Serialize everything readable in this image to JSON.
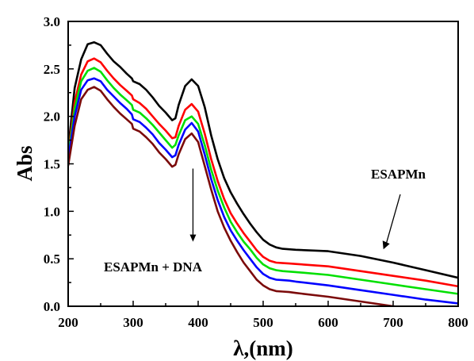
{
  "chart_data": {
    "type": "line",
    "xlabel": "λ,(nm)",
    "ylabel": "Abs",
    "xlim": [
      200,
      800
    ],
    "ylim": [
      0.0,
      3.0
    ],
    "x_ticks": [
      "200",
      "300",
      "400",
      "500",
      "600",
      "700",
      "800"
    ],
    "y_ticks": [
      "0.0",
      "0.5",
      "1.0",
      "1.5",
      "2.0",
      "2.5",
      "3.0"
    ],
    "grid": false,
    "annotations": [
      {
        "text": "ESAPMn",
        "target_x": 685,
        "target_y": 0.6
      },
      {
        "text": "ESAPMn + DNA",
        "arrow_from_x": 392,
        "arrow_from_y": 1.45,
        "arrow_to_x": 392,
        "arrow_to_y": 0.68
      }
    ],
    "x": [
      200,
      210,
      220,
      230,
      240,
      250,
      260,
      270,
      280,
      290,
      298,
      300,
      310,
      320,
      330,
      340,
      350,
      360,
      365,
      370,
      380,
      390,
      400,
      410,
      420,
      430,
      440,
      450,
      460,
      470,
      480,
      490,
      500,
      510,
      520,
      530,
      540,
      550,
      600,
      650,
      700,
      750,
      800
    ],
    "series": [
      {
        "color": "#000000",
        "values": [
          1.65,
          2.3,
          2.6,
          2.76,
          2.78,
          2.75,
          2.66,
          2.58,
          2.52,
          2.45,
          2.4,
          2.37,
          2.34,
          2.28,
          2.2,
          2.11,
          2.04,
          1.96,
          1.98,
          2.12,
          2.32,
          2.39,
          2.32,
          2.1,
          1.8,
          1.55,
          1.35,
          1.2,
          1.08,
          0.97,
          0.87,
          0.78,
          0.7,
          0.65,
          0.62,
          0.605,
          0.6,
          0.595,
          0.58,
          0.53,
          0.46,
          0.38,
          0.3
        ]
      },
      {
        "color": "#ff0000",
        "values": [
          1.6,
          2.15,
          2.44,
          2.58,
          2.61,
          2.57,
          2.48,
          2.4,
          2.33,
          2.27,
          2.22,
          2.18,
          2.14,
          2.08,
          2.0,
          1.92,
          1.85,
          1.77,
          1.78,
          1.9,
          2.07,
          2.13,
          2.05,
          1.82,
          1.55,
          1.32,
          1.13,
          0.98,
          0.87,
          0.77,
          0.68,
          0.59,
          0.52,
          0.48,
          0.46,
          0.455,
          0.45,
          0.445,
          0.42,
          0.37,
          0.32,
          0.27,
          0.21
        ]
      },
      {
        "color": "#00e000",
        "values": [
          1.58,
          2.08,
          2.37,
          2.48,
          2.51,
          2.47,
          2.38,
          2.3,
          2.23,
          2.17,
          2.12,
          2.07,
          2.04,
          1.98,
          1.91,
          1.83,
          1.75,
          1.67,
          1.7,
          1.8,
          1.96,
          2.0,
          1.92,
          1.7,
          1.44,
          1.22,
          1.04,
          0.89,
          0.78,
          0.68,
          0.6,
          0.51,
          0.44,
          0.4,
          0.38,
          0.37,
          0.365,
          0.36,
          0.33,
          0.28,
          0.23,
          0.18,
          0.13
        ]
      },
      {
        "color": "#0000ff",
        "values": [
          1.55,
          2.0,
          2.28,
          2.38,
          2.4,
          2.37,
          2.28,
          2.21,
          2.14,
          2.08,
          2.02,
          1.97,
          1.94,
          1.88,
          1.81,
          1.72,
          1.65,
          1.57,
          1.59,
          1.7,
          1.86,
          1.93,
          1.84,
          1.6,
          1.34,
          1.12,
          0.94,
          0.8,
          0.69,
          0.59,
          0.5,
          0.41,
          0.34,
          0.3,
          0.28,
          0.275,
          0.27,
          0.26,
          0.22,
          0.17,
          0.12,
          0.07,
          0.03
        ]
      },
      {
        "color": "#7b0a0a",
        "values": [
          1.48,
          1.9,
          2.18,
          2.28,
          2.31,
          2.27,
          2.18,
          2.1,
          2.03,
          1.97,
          1.92,
          1.87,
          1.84,
          1.78,
          1.71,
          1.62,
          1.55,
          1.47,
          1.49,
          1.6,
          1.76,
          1.82,
          1.73,
          1.48,
          1.23,
          1.0,
          0.83,
          0.69,
          0.57,
          0.46,
          0.37,
          0.28,
          0.22,
          0.18,
          0.16,
          0.155,
          0.15,
          0.14,
          0.1,
          0.05,
          0.0,
          -0.03,
          -0.05
        ]
      }
    ]
  }
}
